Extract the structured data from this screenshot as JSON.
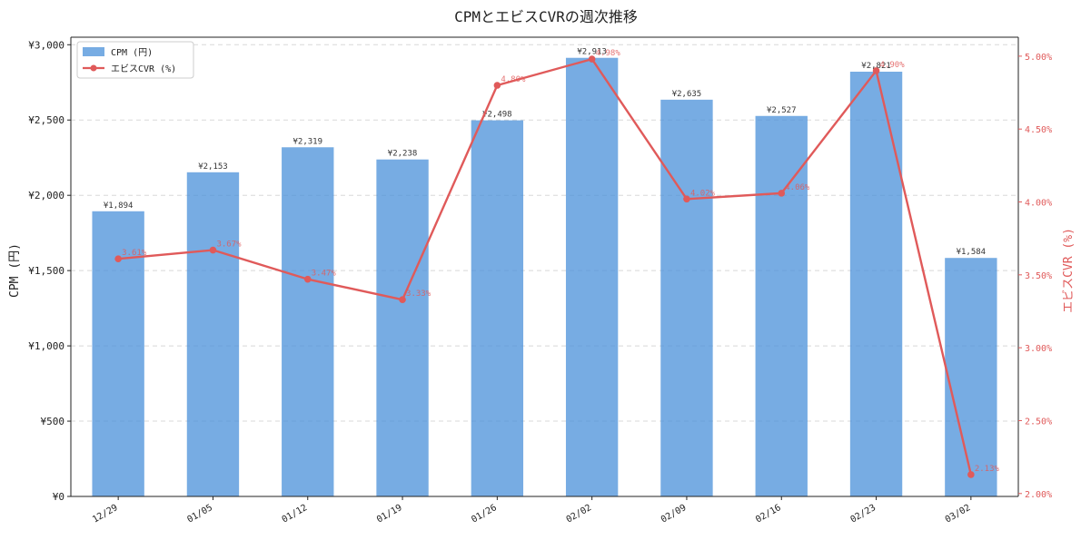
{
  "chart_data": {
    "type": "bar+line",
    "title": "CPMとエビスCVRの週次推移",
    "xlabel": "",
    "ylabel_left": "CPM (円)",
    "ylabel_right": "エビスCVR (%)",
    "categories": [
      "12/29",
      "01/05",
      "01/12",
      "01/19",
      "01/26",
      "02/02",
      "02/09",
      "02/16",
      "02/23",
      "03/02"
    ],
    "series": [
      {
        "name": "CPM (円)",
        "type": "bar",
        "axis": "left",
        "color": "#4a90d9",
        "values": [
          1894,
          2153,
          2319,
          2238,
          2498,
          2913,
          2635,
          2527,
          2821,
          1584
        ],
        "data_labels": [
          "¥1,894",
          "¥2,153",
          "¥2,319",
          "¥2,238",
          "¥2,498",
          "¥2,913",
          "¥2,635",
          "¥2,527",
          "¥2,821",
          "¥1,584"
        ]
      },
      {
        "name": "エビスCVR (%)",
        "type": "line",
        "axis": "right",
        "color": "#e05a5a",
        "values": [
          3.61,
          3.67,
          3.47,
          3.33,
          4.8,
          4.98,
          4.02,
          4.06,
          4.9,
          2.13
        ],
        "data_labels": [
          "3.61%",
          "3.67%",
          "3.47%",
          "3.33%",
          "4.80%",
          "4.98%",
          "4.02%",
          "4.06%",
          "4.90%",
          "2.13%"
        ]
      }
    ],
    "ylim_left": [
      0,
      3050
    ],
    "yticks_left": [
      0,
      500,
      1000,
      1500,
      2000,
      2500,
      3000
    ],
    "ytick_labels_left": [
      "¥0",
      "¥500",
      "¥1,000",
      "¥1,500",
      "¥2,000",
      "¥2,500",
      "¥3,000"
    ],
    "ylim_right": [
      1.98,
      5.13
    ],
    "yticks_right": [
      2.0,
      2.5,
      3.0,
      3.5,
      4.0,
      4.5,
      5.0
    ],
    "ytick_labels_right": [
      "2.00%",
      "2.50%",
      "3.00%",
      "3.50%",
      "4.00%",
      "4.50%",
      "5.00%"
    ],
    "grid": "horizontal dashed",
    "legend_position": "top-left"
  }
}
